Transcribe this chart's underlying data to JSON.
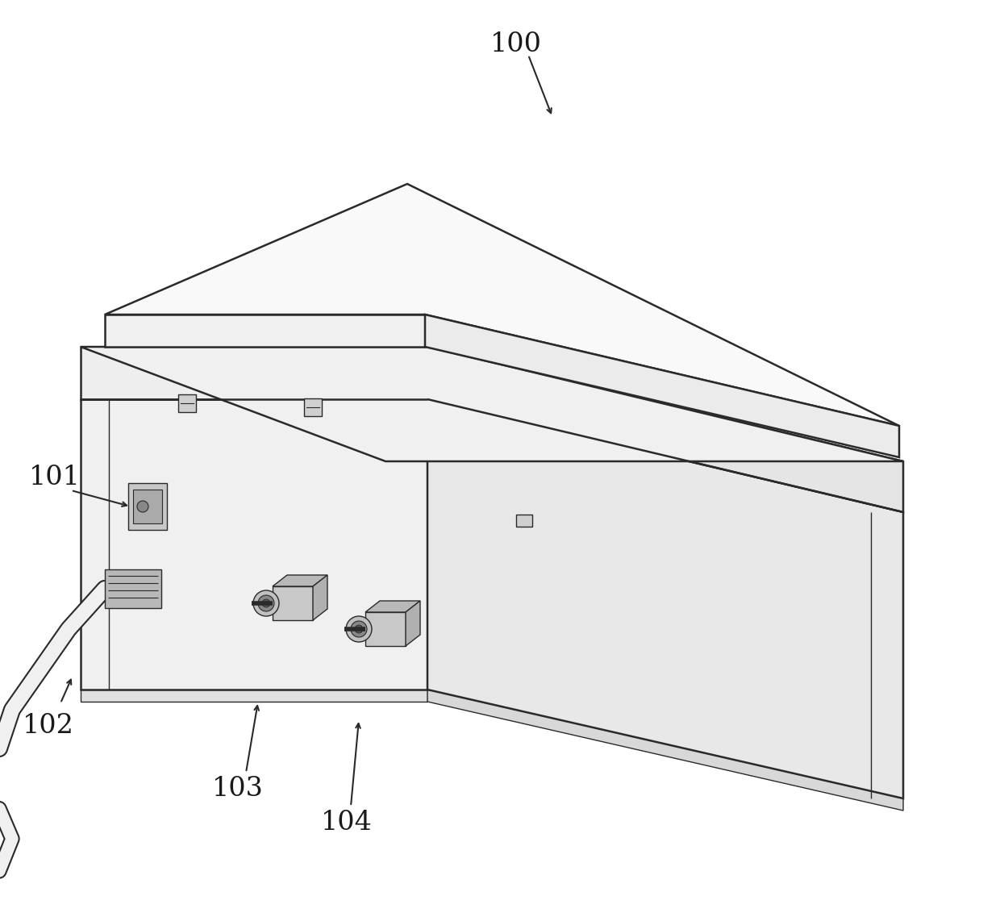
{
  "bg_color": "#ffffff",
  "line_color": "#2a2a2a",
  "face_front": "#f0f0f0",
  "face_right": "#e8e8e8",
  "face_top_box": "#f5f5f5",
  "face_lid_front": "#eeeeee",
  "face_lid_right": "#e5e5e5",
  "face_lid_top": "#f8f8f8",
  "face_lid_panel": "#f9f9f9",
  "face_lid_panel_front": "#f0f0f0",
  "face_lid_panel_right": "#ebebeb"
}
